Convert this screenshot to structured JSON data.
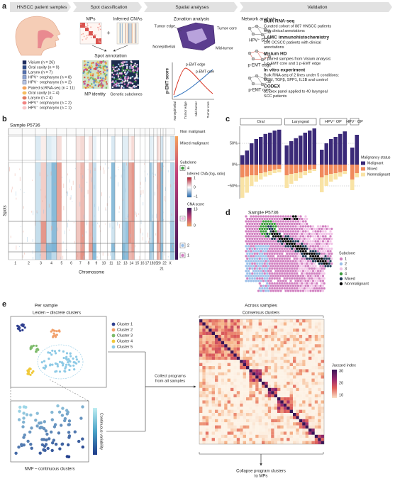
{
  "figure": {
    "panel_labels": [
      "a",
      "b",
      "c",
      "d",
      "e"
    ]
  },
  "panel_a": {
    "headers": [
      "HNSCC patient samples",
      "Spot classification",
      "Spatial analyses",
      "Validation"
    ],
    "visium": [
      "Visium (n = 26)",
      "Oral cavity (n = 9)",
      "Larynx (n = 7)",
      "HPV⁺ oropharynx (n = 8)",
      "HPV⁻ oropharynx (n = 2)"
    ],
    "scrna": [
      "Paired scRNA-seq (n = 11)",
      "Oral cavity (n = 4)",
      "Larynx (n = 4)",
      "HPV⁺ oropharynx (n = 2)",
      "HPV⁻ oropharynx (n = 1)"
    ],
    "spot": {
      "mps": "MPs",
      "plus": "+",
      "cnas": "Inferred CNAs",
      "annotation": "Spot annotation",
      "mp_identity": "MP identity",
      "subclones": "Genetic subclones"
    },
    "zonation": {
      "title": "Zonation analysis",
      "tumor_edge": "Tumor edge",
      "tumor_core": "Tumor core",
      "nonepithelial": "Nonepithelial",
      "mid_tumor": "Mid-tumor",
      "y_label": "p-EMT score",
      "edge_legend": "p-EMT edge",
      "core_legend": "p-EMT core",
      "x": [
        "Nonepithelial",
        "Tumor edge",
        "Mid-tumor",
        "Tumor core"
      ]
    },
    "network": {
      "title": "Network analysis",
      "items": [
        "HPV⁺ SCC",
        "p-EMT edge",
        "p-EMT core"
      ]
    },
    "validation": [
      {
        "title": "Bulk RNA-seq",
        "lines": [
          "Curated cohort of 887 HNSCC patients",
          "with clinical annotations"
        ]
      },
      {
        "title": "LAMC immunohistochemistry",
        "lines": [
          "100 OCSCC patients with clinical",
          "annotations"
        ]
      },
      {
        "title": "Visium HD",
        "lines": [
          "2 paired samples from Visium analysis:",
          "1 p-EMT core and 1 p-EMT edge"
        ]
      },
      {
        "title": "In vitro experiment",
        "lines": [
          "Bulk RNA-seq of 2 lines under 5 conditions:",
          "OSM, TGFβ, SPP1, IL1B and control"
        ]
      },
      {
        "title": "CODEX",
        "lines": [
          "31-plex panel applied to 40 laryngeal",
          "SCC patients"
        ]
      }
    ]
  },
  "panel_b": {
    "sample": "Sample P5736",
    "rows": [
      "Non malignant",
      "Mixed malignant"
    ],
    "y_label": "Spots",
    "x_label": "Chromosome",
    "chromosomes": [
      "1",
      "2",
      "3",
      "4",
      "5",
      "6",
      "7",
      "8",
      "9",
      "10",
      "11",
      "12",
      "13",
      "14",
      "15",
      "16",
      "17",
      "18",
      "19",
      "20",
      "21",
      "22",
      "X"
    ],
    "subclone_title": "Subclone",
    "subclones": [
      "4",
      "3",
      "2",
      "1"
    ],
    "cna_legend": {
      "title": "Inferred CNA (log₂ ratio)",
      "ticks": [
        "1",
        "0",
        "−1"
      ]
    },
    "score_legend": {
      "title": "CNA score",
      "ticks": [
        "13",
        "0"
      ]
    }
  },
  "chart_data": {
    "type": "bar",
    "stacked": true,
    "legend_title": "Malignancy status",
    "series": [
      {
        "name": "Malignant",
        "color": "#3b2a78"
      },
      {
        "name": "Mixed",
        "color": "#f08a5d"
      },
      {
        "name": "Nonmalignant",
        "color": "#f9e3a5"
      }
    ],
    "groups": [
      {
        "name": "Oral",
        "values": [
          [
            22,
            33,
            50,
            60,
            65,
            72,
            75,
            80,
            82
          ],
          [
            -30,
            -28,
            -25,
            -25,
            -20,
            -18,
            -15,
            -12,
            -10
          ],
          [
            -48,
            -38,
            -25,
            -15,
            -15,
            -10,
            -10,
            -8,
            -8
          ]
        ]
      },
      {
        "name": "Laryngeal",
        "values": [
          [
            45,
            55,
            62,
            68,
            75,
            80,
            85
          ],
          [
            -25,
            -22,
            -20,
            -18,
            -15,
            -12,
            -10
          ],
          [
            -30,
            -23,
            -18,
            -14,
            -10,
            -8,
            -5
          ]
        ]
      },
      {
        "name": "HPV⁺ OP",
        "values": [
          [
            35,
            50,
            60,
            65,
            72,
            78
          ],
          [
            -30,
            -25,
            -22,
            -20,
            -18,
            -15
          ],
          [
            -35,
            -25,
            -18,
            -15,
            -10,
            -7
          ]
        ]
      },
      {
        "name": "HPV⁻ OP",
        "values": [
          [
            40,
            70
          ],
          [
            -35,
            -20
          ],
          [
            -25,
            -10
          ]
        ]
      }
    ],
    "ylim": [
      -80,
      90
    ],
    "yticks": [
      {
        "value": 50,
        "label": "50%"
      },
      {
        "value": 0,
        "label": "0%"
      },
      {
        "value": -50,
        "label": "−50%"
      }
    ],
    "grid": true
  },
  "panel_d": {
    "sample": "Sample P5736",
    "legend_title": "Subclone",
    "items": [
      {
        "name": "1",
        "color": "#d17fc0"
      },
      {
        "name": "2",
        "color": "#9bbfe8"
      },
      {
        "name": "3",
        "color": "#f0c2e6"
      },
      {
        "name": "4",
        "color": "#3c9b3c"
      },
      {
        "name": "Mixed",
        "color": "#203a57"
      },
      {
        "name": "Nonmalignant",
        "color": "#000000"
      }
    ]
  },
  "panel_e": {
    "per_sample": "Per sample",
    "leiden": "Leiden – discrete clusters",
    "clusters": [
      {
        "name": "Cluster 1",
        "color": "#2f3f8f"
      },
      {
        "name": "Cluster 2",
        "color": "#f2a06a"
      },
      {
        "name": "Cluster 3",
        "color": "#7dbb6a"
      },
      {
        "name": "Cluster 4",
        "color": "#f0c93a"
      },
      {
        "name": "Cluster 5",
        "color": "#8ecae6"
      }
    ],
    "continuous": "Continuous variability",
    "nmf": "NMF – continuous clusters",
    "collect": [
      "Collect programs",
      "from all samples"
    ],
    "across": "Across samples",
    "consensus": "Consensus clusters",
    "jaccard": {
      "title": "Jaccard index",
      "ticks": [
        "30",
        "20",
        "10"
      ]
    },
    "collapse": [
      "Collapse program clusters",
      "to MPs"
    ]
  }
}
